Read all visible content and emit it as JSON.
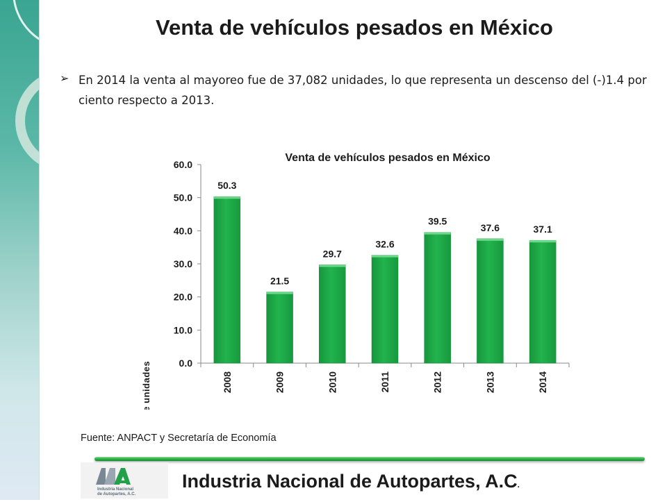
{
  "slide": {
    "title": "Venta de vehículos pesados en México",
    "bullet": "En 2014 la venta al mayoreo fue de 37,082 unidades, lo que representa un descenso del (-)1.4 por ciento respecto a 2013.",
    "source": "Fuente: ANPACT y Secretaría de Economía",
    "footer_org": "Industria Nacional de  Autopartes, A.C",
    "footer_trail": ".",
    "logo_text_line1": "Industria Nacional",
    "logo_text_line2": "de Autopartes, A.C.",
    "accent_color": "#2db24a",
    "bullet_icon": "arrow-bullet-icon"
  },
  "chart_data": {
    "type": "bar",
    "title": "Venta de vehículos pesados en México",
    "xlabel": "",
    "ylabel": "Miles de unidades",
    "categories": [
      "2008",
      "2009",
      "2010",
      "2011",
      "2012",
      "2013",
      "2014"
    ],
    "values": [
      50.3,
      21.5,
      29.7,
      32.6,
      39.5,
      37.6,
      37.1
    ],
    "data_labels": [
      "50.3",
      "21.5",
      "29.7",
      "32.6",
      "39.5",
      "37.6",
      "37.1"
    ],
    "ylim": [
      0,
      60
    ],
    "yticks": [
      0,
      10,
      20,
      30,
      40,
      50,
      60
    ],
    "ytick_labels": [
      "0.0",
      "10.0",
      "20.0",
      "30.0",
      "40.0",
      "50.0",
      "60.0"
    ],
    "grid": false,
    "legend": "none",
    "bar_color": "#1faa47"
  }
}
